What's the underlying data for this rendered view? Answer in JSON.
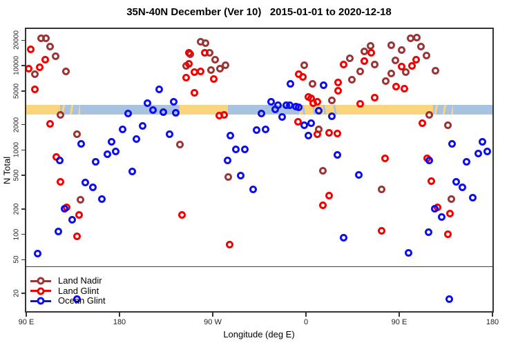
{
  "title": "35N-40N December (Ver 10)   2015-01-01 to 2020-12-18",
  "colors": {
    "land_nadir": "#9B3434",
    "land_glint": "#F50000",
    "ocean_glint": "#0D0DF2",
    "strip_land": "#FBD47E",
    "strip_ocean": "#A9C2DF",
    "axis": "#333333",
    "reference_line": "#3f3f3f"
  },
  "chart_data": {
    "type": "scatter",
    "title": "35N-40N December (Ver 10)   2015-01-01 to 2020-12-18",
    "xlabel": "Longitude (deg E)",
    "ylabel": "N Total",
    "x_axis": {
      "range_deg_e": [
        90,
        540
      ],
      "ticks": [
        {
          "lon": 90,
          "label": "90 E"
        },
        {
          "lon": 180,
          "label": "180"
        },
        {
          "lon": 270,
          "label": "90 W"
        },
        {
          "lon": 360,
          "label": "0"
        },
        {
          "lon": 450,
          "label": "90 E"
        },
        {
          "lon": 540,
          "label": "180"
        }
      ]
    },
    "y_axis": {
      "scale": "log10",
      "ylim": [
        12,
        27000
      ],
      "ticks": [
        20000,
        10000,
        5000,
        2000,
        1000,
        500,
        200,
        100,
        50,
        20
      ]
    },
    "grid": "off",
    "legend_position": "bottom-left",
    "reference_line_n": 42,
    "map_strip": {
      "description": "land/ocean strip along longitude, drawn between N≈2600 and N≈3400",
      "n_range": [
        2600,
        3400
      ],
      "segments": [
        {
          "type": "land",
          "lon_from": 90,
          "lon_to": 122.7
        },
        {
          "type": "mixed-ocean",
          "lon_from": 122.7,
          "lon_to": 142
        },
        {
          "type": "ocean",
          "lon_from": 142,
          "lon_to": 238
        },
        {
          "type": "land",
          "lon_from": 238,
          "lon_to": 284.7
        },
        {
          "type": "ocean",
          "lon_from": 284.7,
          "lon_to": 353.3
        },
        {
          "type": "mixed-land",
          "lon_from": 353.3,
          "lon_to": 394.7
        },
        {
          "type": "land",
          "lon_from": 394.7,
          "lon_to": 482.7
        },
        {
          "type": "mixed-ocean",
          "lon_from": 482.7,
          "lon_to": 502
        },
        {
          "type": "ocean",
          "lon_from": 502,
          "lon_to": 540
        }
      ]
    },
    "series": [
      {
        "name": "Land Nadir",
        "color": "#9B3434",
        "points": [
          [
            104,
            21000
          ],
          [
            109,
            21000
          ],
          [
            113,
            17000
          ],
          [
            118,
            13000
          ],
          [
            98,
            8000
          ],
          [
            128,
            8500
          ],
          [
            123,
            2630
          ],
          [
            139,
            1530
          ],
          [
            238,
            1150
          ],
          [
            258,
            19300
          ],
          [
            263,
            18400
          ],
          [
            248,
            13800
          ],
          [
            267,
            14100
          ],
          [
            272,
            11800
          ],
          [
            244,
            10000
          ],
          [
            277,
            9250
          ],
          [
            282,
            10100
          ],
          [
            268,
            8900
          ],
          [
            285,
            480
          ],
          [
            142,
            255
          ],
          [
            358,
            10100
          ],
          [
            366,
            6140
          ],
          [
            385,
            3880
          ],
          [
            372,
            1750
          ],
          [
            376,
            570
          ],
          [
            461,
            21000
          ],
          [
            467,
            21500
          ],
          [
            471,
            16800
          ],
          [
            476,
            13200
          ],
          [
            452,
            15300
          ],
          [
            442,
            17600
          ],
          [
            446,
            11500
          ],
          [
            456,
            8360
          ],
          [
            422,
            17300
          ],
          [
            416,
            14900
          ],
          [
            426,
            10400
          ],
          [
            412,
            8470
          ],
          [
            402,
            12200
          ],
          [
            404,
            6870
          ],
          [
            437,
            6620
          ],
          [
            442,
            8150
          ],
          [
            485,
            8670
          ],
          [
            479,
            2630
          ],
          [
            497,
            1950
          ],
          [
            433,
            340
          ],
          [
            500,
            260
          ]
        ]
      },
      {
        "name": "Land Glint",
        "color": "#F50000",
        "points": [
          [
            94,
            15500
          ],
          [
            108,
            11800
          ],
          [
            92,
            9250
          ],
          [
            103,
            9530
          ],
          [
            98,
            5260
          ],
          [
            113,
            2050
          ],
          [
            119,
            820
          ],
          [
            123,
            420
          ],
          [
            129,
            210
          ],
          [
            141,
            170
          ],
          [
            139,
            94
          ],
          [
            247,
            14300
          ],
          [
            262,
            14300
          ],
          [
            247,
            10600
          ],
          [
            252,
            8360
          ],
          [
            244,
            7190
          ],
          [
            258,
            8630
          ],
          [
            271,
            6920
          ],
          [
            252,
            4750
          ],
          [
            276,
            2540
          ],
          [
            281,
            2630
          ],
          [
            286,
            75
          ],
          [
            240,
            170
          ],
          [
            353,
            7890
          ],
          [
            357,
            7410
          ],
          [
            362,
            4220
          ],
          [
            365,
            4080
          ],
          [
            367,
            3610
          ],
          [
            371,
            3700
          ],
          [
            352,
            2180
          ],
          [
            371,
            1550
          ],
          [
            382,
            1590
          ],
          [
            390,
            1580
          ],
          [
            391,
            6270
          ],
          [
            391,
            5090
          ],
          [
            382,
            290
          ],
          [
            376,
            220
          ],
          [
            396,
            10300
          ],
          [
            423,
            14100
          ],
          [
            416,
            11300
          ],
          [
            466,
            11700
          ],
          [
            462,
            10000
          ],
          [
            452,
            9840
          ],
          [
            447,
            5600
          ],
          [
            455,
            5380
          ],
          [
            426,
            4190
          ],
          [
            412,
            3540
          ],
          [
            472,
            2070
          ],
          [
            436,
            800
          ],
          [
            477,
            800
          ],
          [
            481,
            430
          ],
          [
            487,
            210
          ],
          [
            499,
            175
          ],
          [
            433,
            110
          ],
          [
            497,
            100
          ]
        ]
      },
      {
        "name": "Ocean Glint",
        "color": "#0D0DF2",
        "points": [
          [
            218,
            5260
          ],
          [
            207,
            3610
          ],
          [
            212,
            2990
          ],
          [
            222,
            2800
          ],
          [
            232,
            3720
          ],
          [
            234,
            2750
          ],
          [
            188,
            2700
          ],
          [
            183,
            1740
          ],
          [
            202,
            1920
          ],
          [
            196,
            1360
          ],
          [
            172,
            1260
          ],
          [
            176,
            960
          ],
          [
            168,
            890
          ],
          [
            143,
            1180
          ],
          [
            157,
            720
          ],
          [
            122,
            750
          ],
          [
            192,
            560
          ],
          [
            228,
            1530
          ],
          [
            147,
            410
          ],
          [
            154,
            360
          ],
          [
            163,
            260
          ],
          [
            127,
            200
          ],
          [
            134,
            150
          ],
          [
            121,
            107
          ],
          [
            101,
            59
          ],
          [
            139,
            17
          ],
          [
            345,
            6140
          ],
          [
            377,
            5830
          ],
          [
            326,
            3700
          ],
          [
            330,
            3060
          ],
          [
            333,
            3380
          ],
          [
            341,
            3380
          ],
          [
            344,
            3380
          ],
          [
            350,
            3280
          ],
          [
            353,
            3180
          ],
          [
            317,
            2700
          ],
          [
            337,
            2450
          ],
          [
            372,
            2930
          ],
          [
            385,
            2500
          ],
          [
            358,
            1980
          ],
          [
            365,
            2070
          ],
          [
            362,
            1470
          ],
          [
            312,
            1720
          ],
          [
            321,
            1740
          ],
          [
            287,
            1490
          ],
          [
            292,
            1010
          ],
          [
            301,
            1010
          ],
          [
            284,
            750
          ],
          [
            297,
            500
          ],
          [
            309,
            340
          ],
          [
            501,
            1180
          ],
          [
            530,
            1250
          ],
          [
            526,
            910
          ],
          [
            535,
            960
          ],
          [
            515,
            730
          ],
          [
            479,
            750
          ],
          [
            411,
            510
          ],
          [
            390,
            870
          ],
          [
            505,
            420
          ],
          [
            511,
            360
          ],
          [
            521,
            270
          ],
          [
            484,
            200
          ],
          [
            491,
            160
          ],
          [
            396,
            92
          ],
          [
            478,
            106
          ],
          [
            459,
            60
          ],
          [
            498,
            17
          ]
        ]
      }
    ]
  }
}
